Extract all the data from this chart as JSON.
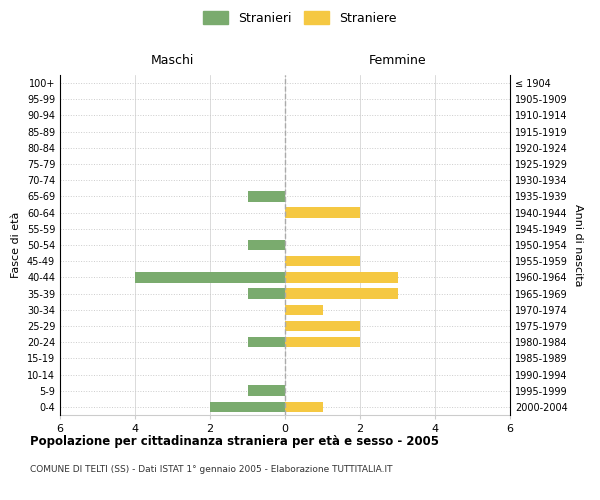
{
  "age_groups": [
    "0-4",
    "5-9",
    "10-14",
    "15-19",
    "20-24",
    "25-29",
    "30-34",
    "35-39",
    "40-44",
    "45-49",
    "50-54",
    "55-59",
    "60-64",
    "65-69",
    "70-74",
    "75-79",
    "80-84",
    "85-89",
    "90-94",
    "95-99",
    "100+"
  ],
  "birth_years": [
    "2000-2004",
    "1995-1999",
    "1990-1994",
    "1985-1989",
    "1980-1984",
    "1975-1979",
    "1970-1974",
    "1965-1969",
    "1960-1964",
    "1955-1959",
    "1950-1954",
    "1945-1949",
    "1940-1944",
    "1935-1939",
    "1930-1934",
    "1925-1929",
    "1920-1924",
    "1915-1919",
    "1910-1914",
    "1905-1909",
    "≤ 1904"
  ],
  "maschi": [
    2,
    1,
    0,
    0,
    1,
    0,
    0,
    1,
    4,
    0,
    1,
    0,
    0,
    1,
    0,
    0,
    0,
    0,
    0,
    0,
    0
  ],
  "femmine": [
    1,
    0,
    0,
    0,
    2,
    2,
    1,
    3,
    3,
    2,
    0,
    0,
    2,
    0,
    0,
    0,
    0,
    0,
    0,
    0,
    0
  ],
  "color_maschi": "#7aab6e",
  "color_femmine": "#f5c842",
  "title": "Popolazione per cittadinanza straniera per età e sesso - 2005",
  "subtitle": "COMUNE DI TELTI (SS) - Dati ISTAT 1° gennaio 2005 - Elaborazione TUTTITALIA.IT",
  "xlabel_left": "Maschi",
  "xlabel_right": "Femmine",
  "ylabel_left": "Fasce di età",
  "ylabel_right": "Anni di nascita",
  "legend_maschi": "Stranieri",
  "legend_femmine": "Straniere",
  "xlim": 6,
  "background_color": "#ffffff",
  "grid_color": "#cccccc"
}
